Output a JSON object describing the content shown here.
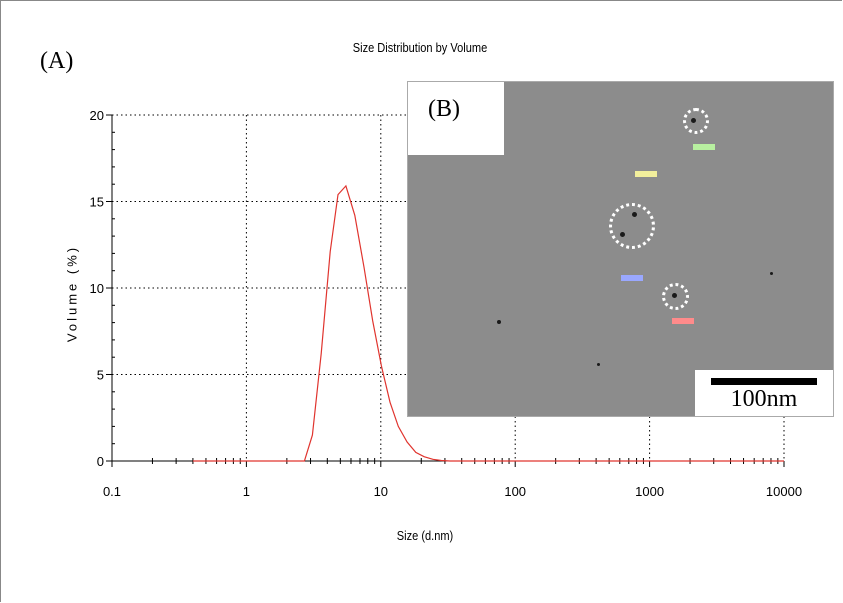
{
  "panel_a_label": "(A)",
  "panel_b_label": "(B)",
  "scale_label": "100nm",
  "colors": {
    "curve": "#e0342e",
    "grid": "#000000",
    "inset_bg": "#8c8c8c"
  },
  "chart_data": {
    "type": "line",
    "title": "Size Distribution by Volume",
    "xlabel": "Size (d.nm)",
    "ylabel": "Volume (%)",
    "xscale": "log",
    "xlim": [
      0.1,
      10000
    ],
    "ylim": [
      0,
      20
    ],
    "xticks": [
      "0.1",
      "1",
      "10",
      "100",
      "1000",
      "10000"
    ],
    "yticks": [
      "0",
      "5",
      "10",
      "15",
      "20"
    ],
    "grid": true,
    "series": [
      {
        "x": [
          0.4,
          1,
          2,
          2.7,
          3.1,
          3.6,
          4.2,
          4.8,
          5.5,
          6.4,
          7.5,
          8.7,
          10.1,
          11.7,
          13.5,
          15.7,
          18.2,
          21,
          24.4,
          28.2,
          32.7,
          100,
          1000,
          10000
        ],
        "y": [
          0,
          0,
          0,
          0,
          1.5,
          6.2,
          12.1,
          15.4,
          15.9,
          14.2,
          11.2,
          8.1,
          5.5,
          3.4,
          2.0,
          1.1,
          0.5,
          0.25,
          0.1,
          0.03,
          0,
          0,
          0,
          0
        ]
      }
    ]
  },
  "inset_markers": [
    {
      "color": "#b8f0a0"
    },
    {
      "color": "#f2ef9c"
    },
    {
      "color": "#9aa8ff"
    },
    {
      "color": "#ff8b8b"
    }
  ]
}
